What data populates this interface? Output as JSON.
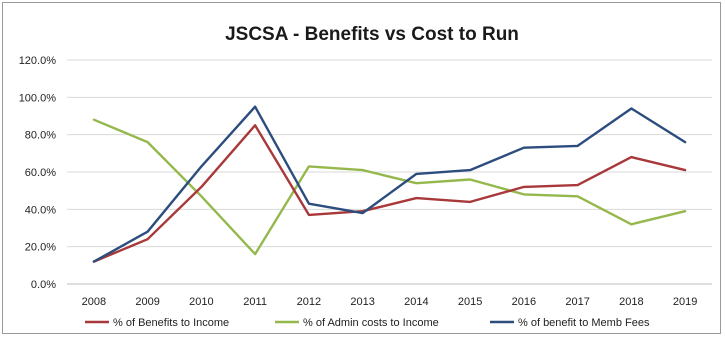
{
  "chart_data": {
    "type": "line",
    "title": "JSCSA - Benefits vs Cost to Run",
    "xlabel": "",
    "ylabel": "",
    "categories": [
      "2008",
      "2009",
      "2010",
      "2011",
      "2012",
      "2013",
      "2014",
      "2015",
      "2016",
      "2017",
      "2018",
      "2019"
    ],
    "y_ticks": [
      "0.0%",
      "20.0%",
      "40.0%",
      "60.0%",
      "80.0%",
      "100.0%",
      "120.0%"
    ],
    "ylim": [
      0,
      120
    ],
    "y_unit": "percent",
    "grid": true,
    "legend_position": "bottom",
    "series": [
      {
        "name": "% of Benefits to Income",
        "color": "#a8383a",
        "values": [
          12,
          24,
          52,
          85,
          37,
          39,
          46,
          44,
          52,
          53,
          68,
          61
        ]
      },
      {
        "name": "% of Admin costs  to Income",
        "color": "#95b84c",
        "values": [
          88,
          76,
          47,
          16,
          63,
          61,
          54,
          56,
          48,
          47,
          32,
          39
        ]
      },
      {
        "name": "% of benefit to Memb Fees",
        "color": "#2c4d7e",
        "values": [
          12,
          28,
          63,
          95,
          43,
          38,
          59,
          61,
          73,
          74,
          94,
          76
        ]
      }
    ]
  }
}
